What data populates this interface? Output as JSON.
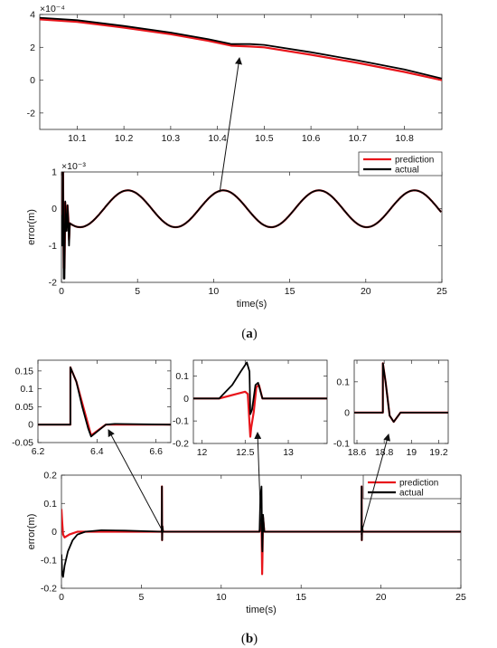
{
  "captions": {
    "a": "a",
    "b": "b"
  },
  "colors": {
    "prediction": "#e8151b",
    "actual": "#000000",
    "axis": "#262626"
  },
  "chart_data": [
    {
      "id": "a_zoom",
      "type": "line",
      "xlim": [
        10.02,
        10.88
      ],
      "ylim": [
        -3,
        4
      ],
      "xticks": [
        10.1,
        10.2,
        10.3,
        10.4,
        10.5,
        10.6,
        10.7,
        10.8
      ],
      "yticks": [
        -2,
        0,
        2,
        4
      ],
      "exponent": "×10⁻⁴",
      "xlabel": "",
      "ylabel": "",
      "grid": false,
      "series": [
        {
          "name": "prediction",
          "color": "#e8151b",
          "x": [
            10.02,
            10.1,
            10.2,
            10.3,
            10.38,
            10.43,
            10.47,
            10.5,
            10.6,
            10.7,
            10.8,
            10.88
          ],
          "y": [
            3.7,
            3.55,
            3.2,
            2.8,
            2.4,
            2.1,
            2.05,
            2.0,
            1.55,
            1.05,
            0.5,
            0.0
          ]
        },
        {
          "name": "actual",
          "color": "#000000",
          "x": [
            10.02,
            10.1,
            10.2,
            10.3,
            10.38,
            10.43,
            10.47,
            10.5,
            10.6,
            10.7,
            10.8,
            10.88
          ],
          "y": [
            3.8,
            3.65,
            3.3,
            2.9,
            2.5,
            2.2,
            2.2,
            2.15,
            1.7,
            1.2,
            0.65,
            0.1
          ]
        }
      ]
    },
    {
      "id": "a_main",
      "type": "line",
      "xlim": [
        0,
        25
      ],
      "ylim": [
        -2,
        1
      ],
      "xticks": [
        0,
        5,
        10,
        15,
        20,
        25
      ],
      "yticks": [
        -2,
        -1,
        0,
        1
      ],
      "exponent": "×10⁻³",
      "xlabel": "time(s)",
      "ylabel": "error(m)",
      "grid": false,
      "legend": "top-right",
      "series": [
        {
          "name": "prediction",
          "color": "#e8151b",
          "x": [
            0,
            25
          ],
          "y": [
            0,
            0
          ]
        },
        {
          "name": "actual",
          "color": "#000000",
          "x": [
            0,
            25
          ],
          "y": [
            0,
            0
          ]
        }
      ]
    },
    {
      "id": "b_zoom1",
      "type": "line",
      "xlim": [
        6.2,
        6.65
      ],
      "ylim": [
        -0.05,
        0.18
      ],
      "xticks": [
        6.2,
        6.4,
        6.6
      ],
      "yticks": [
        -0.05,
        0,
        0.05,
        0.1,
        0.15
      ],
      "xlabel": "",
      "ylabel": "",
      "grid": false,
      "series": [
        {
          "name": "prediction",
          "color": "#e8151b",
          "x": [
            6.2,
            6.31,
            6.31,
            6.33,
            6.38,
            6.43,
            6.65
          ],
          "y": [
            0,
            0,
            0.16,
            0.12,
            -0.03,
            0.0,
            0.0
          ]
        },
        {
          "name": "actual",
          "color": "#000000",
          "x": [
            6.2,
            6.31,
            6.31,
            6.33,
            6.35,
            6.37,
            6.38,
            6.4,
            6.43,
            6.46,
            6.65
          ],
          "y": [
            0,
            0,
            0.16,
            0.12,
            0.05,
            -0.01,
            -0.033,
            -0.02,
            0.0,
            0.002,
            0.0
          ]
        }
      ]
    },
    {
      "id": "b_zoom2",
      "type": "line",
      "xlim": [
        11.9,
        13.45
      ],
      "ylim": [
        -0.2,
        0.17
      ],
      "xticks": [
        12,
        12.5,
        13
      ],
      "yticks": [
        -0.2,
        -0.1,
        0,
        0.1
      ],
      "xlabel": "",
      "ylabel": "",
      "grid": false,
      "series": [
        {
          "name": "prediction",
          "color": "#e8151b",
          "x": [
            11.9,
            12.2,
            12.4,
            12.5,
            12.53,
            12.56,
            12.57,
            12.6,
            12.63,
            12.66,
            12.7,
            12.9,
            13.45
          ],
          "y": [
            0,
            0,
            0.02,
            0.03,
            0.02,
            -0.17,
            -0.13,
            -0.06,
            0.05,
            0.06,
            0.0,
            0.0,
            0.0
          ]
        },
        {
          "name": "actual",
          "color": "#000000",
          "x": [
            11.9,
            12.2,
            12.35,
            12.45,
            12.52,
            12.55,
            12.56,
            12.58,
            12.62,
            12.65,
            12.7,
            12.9,
            13.45
          ],
          "y": [
            0,
            0,
            0.06,
            0.12,
            0.16,
            0.12,
            -0.07,
            -0.05,
            0.06,
            0.07,
            0.0,
            0.0,
            0.0
          ]
        }
      ]
    },
    {
      "id": "b_zoom3",
      "type": "line",
      "xlim": [
        18.58,
        19.27
      ],
      "ylim": [
        -0.1,
        0.17
      ],
      "xticks": [
        18.6,
        18.8,
        19,
        19.2
      ],
      "yticks": [
        -0.1,
        0,
        0.1
      ],
      "xlabel": "",
      "ylabel": "",
      "grid": false,
      "series": [
        {
          "name": "prediction",
          "color": "#e8151b",
          "x": [
            18.58,
            18.79,
            18.79,
            18.81,
            18.84,
            18.87,
            18.92,
            19.27
          ],
          "y": [
            0,
            0,
            0.16,
            0.1,
            -0.01,
            -0.03,
            0.0,
            0.0
          ]
        },
        {
          "name": "actual",
          "color": "#000000",
          "x": [
            18.58,
            18.79,
            18.79,
            18.81,
            18.84,
            18.87,
            18.92,
            19.27
          ],
          "y": [
            0,
            0,
            0.16,
            0.1,
            -0.01,
            -0.03,
            0.0,
            0.0
          ]
        }
      ]
    },
    {
      "id": "b_main",
      "type": "line",
      "xlim": [
        0,
        25
      ],
      "ylim": [
        -0.2,
        0.2
      ],
      "xticks": [
        0,
        5,
        10,
        15,
        20,
        25
      ],
      "yticks": [
        -0.2,
        -0.1,
        0,
        0.1,
        0.2
      ],
      "xlabel": "time(s)",
      "ylabel": "error(m)",
      "grid": false,
      "legend": "top-right",
      "series": [
        {
          "name": "prediction",
          "color": "#e8151b",
          "x": [
            0,
            0.05,
            0.1,
            0.2,
            0.5,
            1.0,
            1.5,
            6.28,
            6.29,
            6.3,
            6.32,
            6.36,
            6.4,
            12.4,
            12.45,
            12.52,
            12.56,
            12.58,
            12.62,
            12.7,
            18.78,
            18.79,
            18.8,
            18.82,
            18.86,
            18.9,
            25
          ],
          "y": [
            0.08,
            0.03,
            -0.01,
            -0.02,
            -0.01,
            0.0,
            0.0,
            0.0,
            0.16,
            -0.03,
            0.02,
            0.0,
            0.0,
            0.0,
            0.02,
            0.03,
            -0.15,
            -0.1,
            0.05,
            0.0,
            0.0,
            0.16,
            -0.03,
            0.02,
            0.0,
            0.0,
            0.0
          ]
        },
        {
          "name": "actual",
          "color": "#000000",
          "x": [
            0,
            0.05,
            0.1,
            0.2,
            0.4,
            0.7,
            1.0,
            1.5,
            2.5,
            4,
            6.28,
            6.29,
            6.3,
            6.32,
            6.36,
            6.4,
            12.4,
            12.45,
            12.52,
            12.56,
            12.58,
            12.62,
            12.7,
            18.78,
            18.79,
            18.8,
            18.82,
            18.86,
            18.9,
            25
          ],
          "y": [
            -0.08,
            -0.15,
            -0.16,
            -0.12,
            -0.07,
            -0.03,
            -0.01,
            0.0,
            0.005,
            0.004,
            0.0,
            0.16,
            -0.03,
            0.02,
            0.0,
            0.0,
            0.0,
            0.12,
            0.16,
            -0.05,
            -0.07,
            0.06,
            0.0,
            0.0,
            0.16,
            -0.03,
            0.02,
            0.0,
            0.0,
            0.0
          ]
        }
      ]
    }
  ]
}
